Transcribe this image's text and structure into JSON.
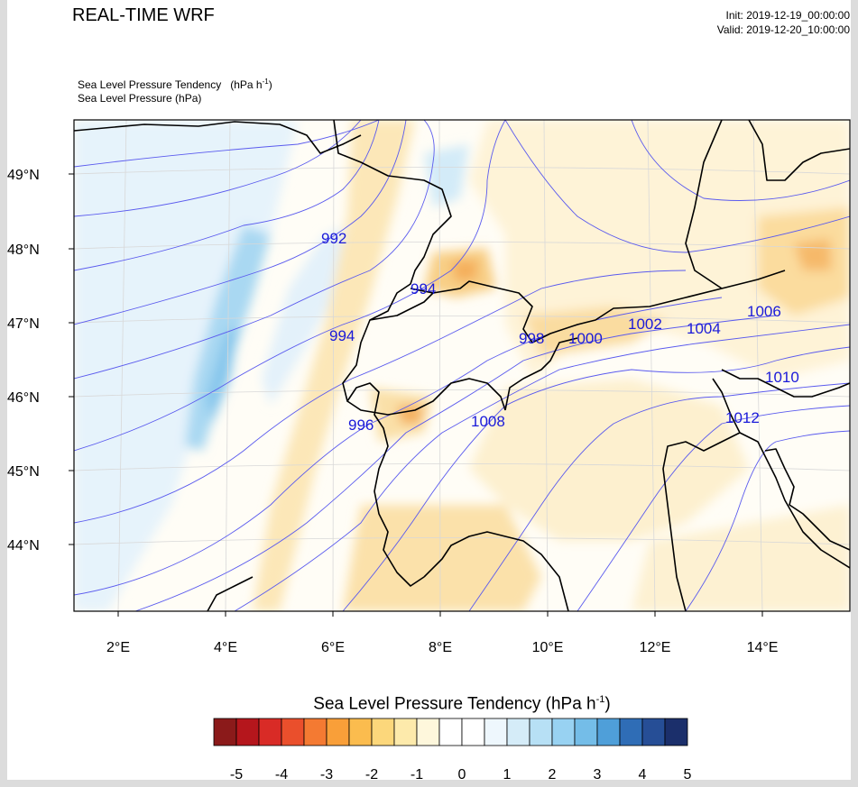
{
  "header": {
    "title": "REAL-TIME WRF",
    "init_line": "Init: 2019-12-19_00:00:00",
    "valid_line": "Valid: 2019-12-20_10:00:00"
  },
  "subtitles": {
    "field1_name": "Sea Level Pressure Tendency",
    "field1_units_base": "(hPa h",
    "field1_units_exp": "-1",
    "field1_units_end": ")",
    "field2": "Sea Level Pressure   (hPa)"
  },
  "map": {
    "lat_labels": [
      "49°N",
      "48°N",
      "47°N",
      "46°N",
      "45°N",
      "44°N"
    ],
    "lon_labels": [
      "2°E",
      "4°E",
      "6°E",
      "8°E",
      "10°E",
      "12°E",
      "14°E"
    ],
    "contour_labels": [
      "992",
      "994",
      "994",
      "996",
      "998",
      "1000",
      "1002",
      "1004",
      "1006",
      "1008",
      "1010",
      "1012"
    ]
  },
  "colorbar": {
    "title_base": "Sea Level Pressure Tendency  (hPa h",
    "title_exp": "-1",
    "title_end": ")",
    "tick_labels": [
      "-5",
      "-4",
      "-3",
      "-2",
      "-1",
      "0",
      "1",
      "2",
      "3",
      "4",
      "5"
    ],
    "colors": [
      "#8b1a1a",
      "#b5161c",
      "#d92b26",
      "#ea4f2c",
      "#f47a32",
      "#f99f39",
      "#fbbc4e",
      "#fcd77b",
      "#fdeaab",
      "#fef7dc",
      "#ffffff",
      "#ffffff",
      "#eef7fd",
      "#d5ecf8",
      "#b7e0f5",
      "#98d2f2",
      "#74bde8",
      "#4f9fd9",
      "#2f6db6",
      "#264e96",
      "#1b2f6b"
    ]
  }
}
